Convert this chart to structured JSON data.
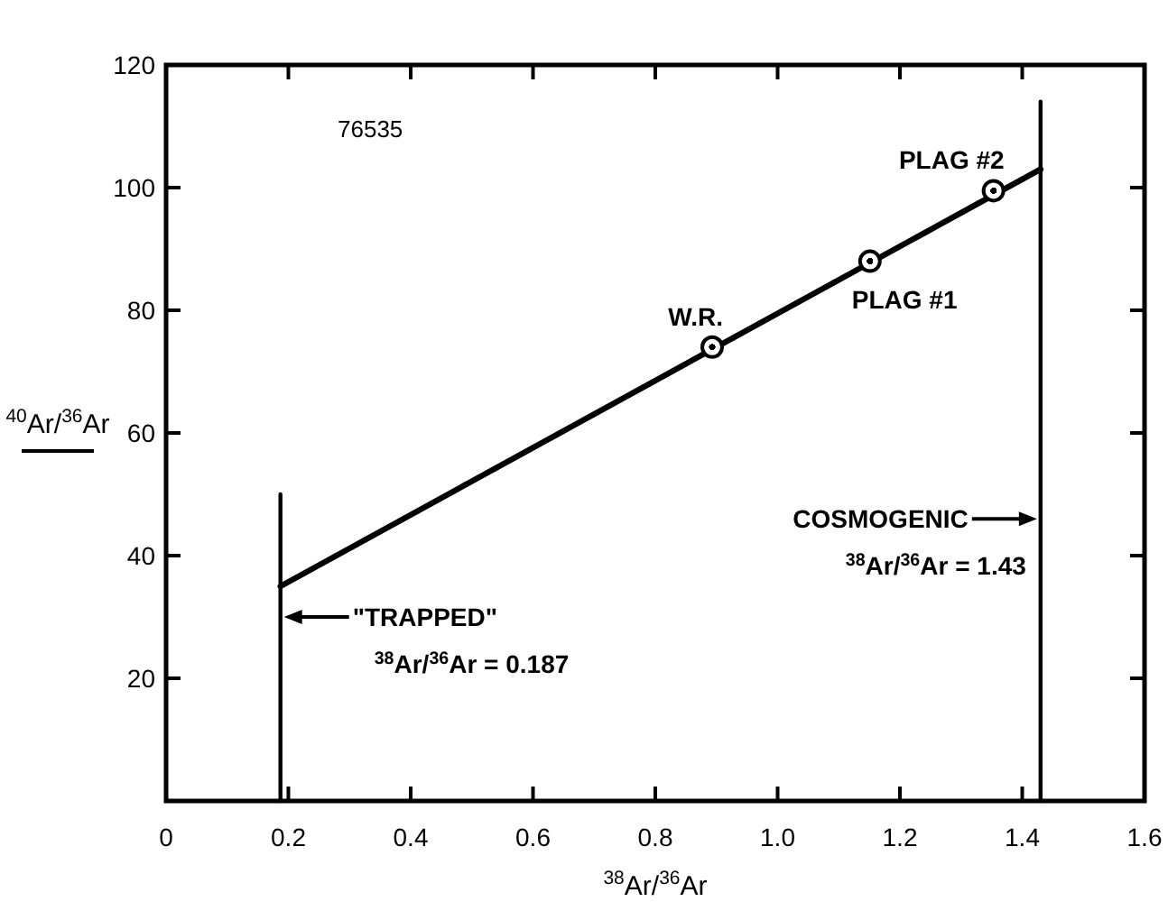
{
  "chart_data": {
    "type": "scatter",
    "xlabel": "$^{38}$Ar/$^{36}$Ar",
    "ylabel": "$^{40}$Ar/$^{36}$Ar",
    "xlim": [
      0,
      1.6
    ],
    "ylim": [
      0,
      120
    ],
    "xticks": [
      0,
      0.2,
      0.4,
      0.6,
      0.8,
      {
        "value": 1,
        "label": "1.0"
      },
      1.2,
      1.4,
      1.6
    ],
    "yticks": [
      20,
      40,
      60,
      80,
      100,
      120
    ],
    "marker": "circle",
    "series": [
      {
        "type": "line",
        "marker": "none",
        "color": "#000000",
        "x": [
          0.187,
          1.43
        ],
        "values": [
          35,
          103
        ]
      },
      {
        "type": "line",
        "marker": "none",
        "color": "#000000",
        "x": [
          0.187,
          0.187
        ],
        "values": [
          0,
          50
        ]
      },
      {
        "type": "line",
        "marker": "none",
        "color": "#000000",
        "x": [
          1.43,
          1.43
        ],
        "values": [
          0,
          114
        ]
      },
      {
        "color": "#000000",
        "x": [
          0.893,
          1.151,
          1.353
        ],
        "values": [
          74,
          88,
          99.5
        ]
      }
    ],
    "annotations": [
      "76535",
      {
        "text": "W.R.",
        "x": 0.893,
        "y": 74
      },
      {
        "text": "PLAG #1",
        "x": 1.151,
        "y": 88
      },
      {
        "text": "PLAG #2",
        "x": 1.353,
        "y": 99.5
      },
      {
        "text": "\"TRAPPED\"\n$^{38}$Ar/$^{36}$Ar = 0.187",
        "x": 0.187,
        "y": 30
      },
      {
        "text": "COSMOGENIC\n$^{38}$Ar/$^{36}$Ar = 1.43",
        "x": 1.43,
        "y": 46
      }
    ]
  }
}
